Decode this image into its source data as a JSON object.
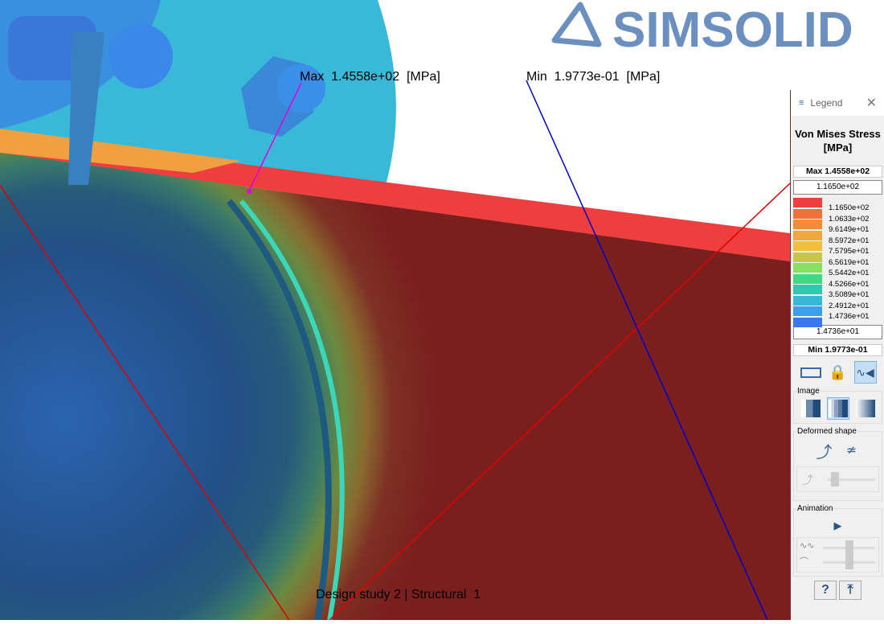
{
  "viewport": {
    "logo_text": "SIMSOLID",
    "max_label": "Max  1.4558e+02  [MPa]",
    "min_label": "Min  1.9773e-01  [MPa]",
    "status": "Design study 2 | Structural  1"
  },
  "legend": {
    "header": "Legend",
    "title_line1": "Von Mises Stress",
    "title_line2": "[MPa]",
    "max": "Max  1.4558e+02",
    "upper_input": "1.1650e+02",
    "lower_input": "1.4736e+01",
    "min": "Min  1.9773e-01",
    "colors": [
      "#ee3e3e",
      "#f0703c",
      "#f08c3c",
      "#f0a83c",
      "#f0c03c",
      "#c8c848",
      "#88e060",
      "#40d880",
      "#30c8b0",
      "#38b8d8",
      "#3aa0ee",
      "#3a78ee"
    ],
    "labels": [
      "1.1650e+02",
      "1.0633e+02",
      "9.6149e+01",
      "8.5972e+01",
      "7.5795e+01",
      "6.5619e+01",
      "5.5442e+01",
      "4.5266e+01",
      "3.5089e+01",
      "2.4912e+01",
      "1.4736e+01"
    ],
    "image_group": "Image",
    "deformed_group": "Deformed shape",
    "animation_group": "Animation",
    "help": "?"
  }
}
